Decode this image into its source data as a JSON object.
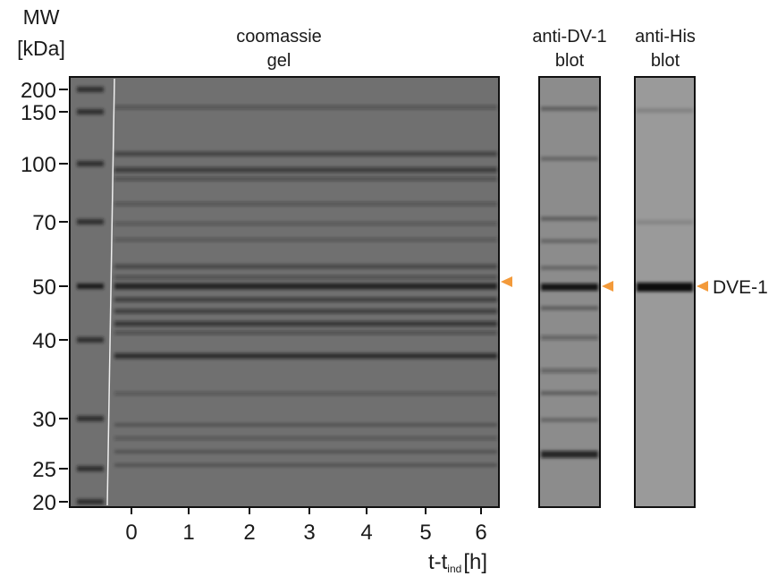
{
  "mw_axis": {
    "title": [
      "MW",
      "[kDa]"
    ],
    "markers": [
      "200",
      "150",
      "100",
      "70",
      "50",
      "40",
      "30",
      "25",
      "20"
    ]
  },
  "panels": [
    {
      "title": [
        "coomassie",
        "gel"
      ]
    },
    {
      "title": [
        "anti-DV-1",
        "blot"
      ]
    },
    {
      "title": [
        "anti-His",
        "blot"
      ]
    }
  ],
  "lanes": [
    "0",
    "1",
    "2",
    "3",
    "4",
    "5",
    "6"
  ],
  "x_label": {
    "main": "t-t",
    "sub": "ind",
    "unit": "[h]"
  },
  "arrow_label": "DVE-1"
}
